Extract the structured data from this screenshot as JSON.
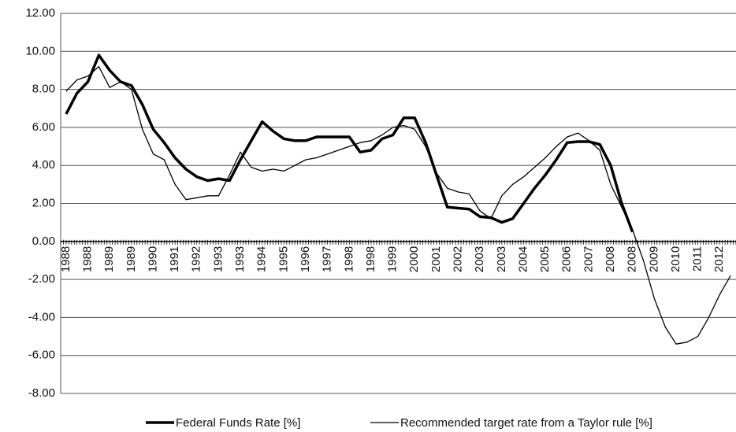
{
  "chart_data": {
    "type": "line",
    "categories": [
      "1988",
      null,
      "1988",
      null,
      "1989",
      null,
      "1989",
      null,
      "1990",
      null,
      "1991",
      null,
      "1992",
      null,
      "1993",
      null,
      "1993",
      null,
      "1994",
      null,
      "1995",
      null,
      "1996",
      null,
      "1997",
      null,
      "1998",
      null,
      "1998",
      null,
      "1999",
      null,
      "2000",
      null,
      "2001",
      null,
      "2002",
      null,
      "2003",
      null,
      "2003",
      null,
      "2004",
      null,
      "2005",
      null,
      "2006",
      null,
      "2007",
      null,
      "2008",
      null,
      "2008",
      null,
      "2009",
      null,
      "2010",
      null,
      "2011",
      null,
      "2012",
      null
    ],
    "series": [
      {
        "name": "Federal Funds Rate [%]",
        "color": "#000000",
        "width": 3.5,
        "values": [
          6.7,
          7.8,
          8.4,
          9.8,
          9.0,
          8.4,
          8.2,
          7.2,
          5.9,
          5.2,
          4.4,
          3.8,
          3.4,
          3.2,
          3.3,
          3.2,
          4.3,
          5.3,
          6.3,
          5.8,
          5.4,
          5.3,
          5.3,
          5.5,
          5.5,
          5.5,
          5.5,
          4.7,
          4.8,
          5.4,
          5.6,
          6.5,
          6.5,
          5.2,
          3.5,
          1.8,
          1.75,
          1.7,
          1.3,
          1.25,
          1.0,
          1.2,
          2.0,
          2.8,
          3.5,
          4.3,
          5.2,
          5.25,
          5.25,
          5.1,
          4.0,
          2.0,
          0.5,
          null,
          null,
          null,
          null,
          null,
          null,
          null,
          null,
          null
        ]
      },
      {
        "name": "Recommended target rate from a Taylor rule [%]",
        "color": "#000000",
        "width": 1.3,
        "values": [
          7.9,
          8.5,
          8.7,
          9.2,
          8.1,
          8.4,
          8.0,
          5.9,
          4.6,
          4.3,
          3.0,
          2.2,
          2.3,
          2.4,
          2.4,
          3.5,
          4.7,
          3.9,
          3.7,
          3.8,
          3.7,
          4.0,
          4.3,
          4.4,
          4.6,
          4.8,
          5.0,
          5.2,
          5.3,
          5.6,
          6.0,
          6.1,
          5.9,
          5.0,
          3.6,
          2.8,
          2.6,
          2.5,
          1.6,
          1.2,
          2.4,
          3.0,
          3.4,
          3.9,
          4.4,
          5.0,
          5.5,
          5.7,
          5.3,
          4.8,
          3.0,
          1.8,
          0.6,
          -1.0,
          -3.0,
          -4.5,
          -5.4,
          -5.3,
          -5.0,
          -4.0,
          -2.8,
          -1.8
        ]
      }
    ],
    "ylim": [
      -8,
      12
    ],
    "yticks": [
      {
        "value": -8,
        "label": "-8.00"
      },
      {
        "value": -6,
        "label": "-6.00"
      },
      {
        "value": -4,
        "label": "-4.00"
      },
      {
        "value": -2,
        "label": "-2.00"
      },
      {
        "value": 0,
        "label": "0.00"
      },
      {
        "value": 2,
        "label": "2.00"
      },
      {
        "value": 4,
        "label": "4.00"
      },
      {
        "value": 6,
        "label": "6.00"
      },
      {
        "value": 8,
        "label": "8.00"
      },
      {
        "value": 10,
        "label": "10.00"
      },
      {
        "value": 12,
        "label": "12.00"
      }
    ],
    "grid": true,
    "legend": "bottom"
  }
}
